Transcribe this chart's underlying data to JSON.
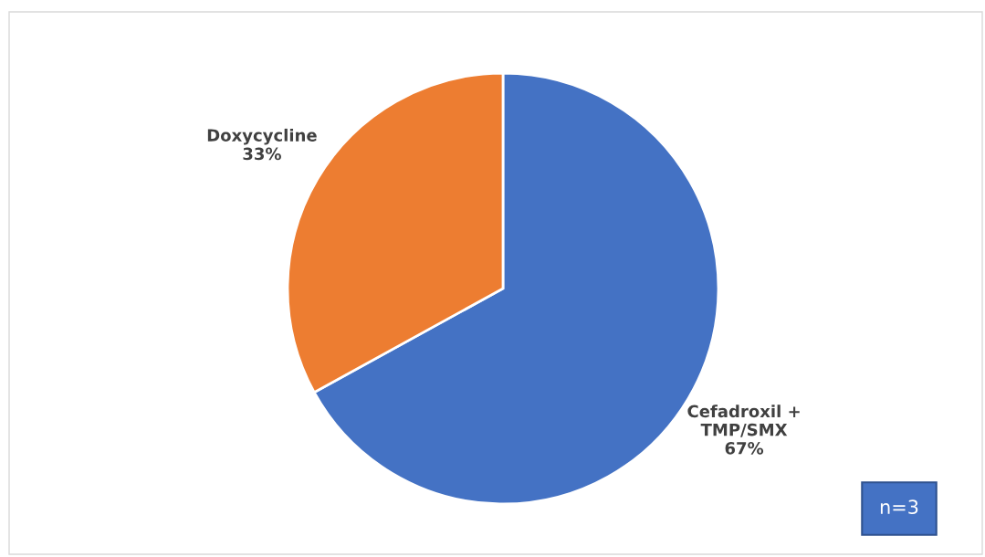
{
  "chart_data": {
    "type": "pie",
    "categories": [
      "Cefadroxil +\nTMP/SMX",
      "Doxycycline"
    ],
    "values": [
      67,
      33
    ],
    "colors": [
      "#4472c4",
      "#ed7d31"
    ],
    "value_labels": [
      "67%",
      "33%"
    ],
    "annotations": [
      "n=3"
    ],
    "legend": false
  }
}
